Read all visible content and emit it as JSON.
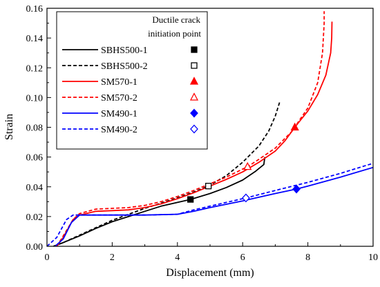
{
  "chart_data": {
    "type": "line",
    "xlabel": "Displacement (mm)",
    "ylabel": "Strain",
    "xlim": [
      0,
      10
    ],
    "ylim": [
      0,
      0.16
    ],
    "xticks": [
      "0",
      "2",
      "4",
      "6",
      "8",
      "10"
    ],
    "yticks": [
      "0.00",
      "0.02",
      "0.04",
      "0.06",
      "0.08",
      "0.10",
      "0.12",
      "0.14",
      "0.16"
    ],
    "grid": false,
    "legend": {
      "placement": "top-left",
      "title_line1": "Ductile crack",
      "title_line2": "initiation point"
    },
    "series": [
      {
        "name": "SBHS500-1",
        "color": "#000000",
        "dash": "solid",
        "marker": "square-filled",
        "crack_point": [
          4.4,
          0.0315
        ],
        "points": [
          [
            0.2,
            0
          ],
          [
            0.5,
            0.0025
          ],
          [
            1,
            0.007
          ],
          [
            1.5,
            0.012
          ],
          [
            2,
            0.0165
          ],
          [
            2.5,
            0.02
          ],
          [
            3,
            0.0235
          ],
          [
            3.5,
            0.027
          ],
          [
            4,
            0.0295
          ],
          [
            4.4,
            0.0315
          ],
          [
            5,
            0.0355
          ],
          [
            5.5,
            0.0395
          ],
          [
            6,
            0.0445
          ],
          [
            6.4,
            0.0505
          ],
          [
            6.65,
            0.055
          ],
          [
            6.68,
            0.06
          ]
        ]
      },
      {
        "name": "SBHS500-2",
        "color": "#000000",
        "dash": "dashed",
        "marker": "square-open",
        "crack_point": [
          4.95,
          0.0405
        ],
        "points": [
          [
            0.2,
            0
          ],
          [
            0.5,
            0.0025
          ],
          [
            1,
            0.0075
          ],
          [
            1.5,
            0.0125
          ],
          [
            2,
            0.0175
          ],
          [
            2.5,
            0.0215
          ],
          [
            3,
            0.0255
          ],
          [
            3.5,
            0.029
          ],
          [
            4,
            0.0325
          ],
          [
            4.5,
            0.0365
          ],
          [
            4.95,
            0.0405
          ],
          [
            5.5,
            0.0475
          ],
          [
            6,
            0.0565
          ],
          [
            6.5,
            0.0675
          ],
          [
            6.8,
            0.0775
          ],
          [
            7,
            0.0875
          ],
          [
            7.15,
            0.098
          ]
        ]
      },
      {
        "name": "SM570-1",
        "color": "#ff0000",
        "dash": "solid",
        "marker": "triangle-filled",
        "crack_point": [
          7.6,
          0.08
        ],
        "points": [
          [
            0.3,
            0
          ],
          [
            0.5,
            0.006
          ],
          [
            0.8,
            0.018
          ],
          [
            1,
            0.021
          ],
          [
            1.5,
            0.0235
          ],
          [
            2,
            0.024
          ],
          [
            2.5,
            0.0245
          ],
          [
            3,
            0.026
          ],
          [
            3.5,
            0.0285
          ],
          [
            4,
            0.032
          ],
          [
            4.5,
            0.036
          ],
          [
            5,
            0.0405
          ],
          [
            5.5,
            0.045
          ],
          [
            6,
            0.05
          ],
          [
            6.5,
            0.0565
          ],
          [
            7,
            0.064
          ],
          [
            7.3,
            0.071
          ],
          [
            7.6,
            0.08
          ],
          [
            8,
            0.091
          ],
          [
            8.3,
            0.102
          ],
          [
            8.55,
            0.115
          ],
          [
            8.7,
            0.13
          ],
          [
            8.73,
            0.14
          ],
          [
            8.74,
            0.151
          ]
        ]
      },
      {
        "name": "SM570-2",
        "color": "#ff0000",
        "dash": "dashed",
        "marker": "triangle-open",
        "crack_point": [
          6.15,
          0.0535
        ],
        "points": [
          [
            0.3,
            0
          ],
          [
            0.5,
            0.007
          ],
          [
            0.8,
            0.018
          ],
          [
            1,
            0.022
          ],
          [
            1.5,
            0.025
          ],
          [
            2,
            0.0255
          ],
          [
            2.5,
            0.026
          ],
          [
            3,
            0.0275
          ],
          [
            3.5,
            0.03
          ],
          [
            4,
            0.0335
          ],
          [
            4.5,
            0.0375
          ],
          [
            5,
            0.042
          ],
          [
            5.5,
            0.0465
          ],
          [
            6.15,
            0.0535
          ],
          [
            6.5,
            0.0585
          ],
          [
            7,
            0.066
          ],
          [
            7.5,
            0.077
          ],
          [
            8,
            0.093
          ],
          [
            8.3,
            0.11
          ],
          [
            8.45,
            0.13
          ],
          [
            8.5,
            0.15
          ],
          [
            8.5,
            0.158
          ]
        ]
      },
      {
        "name": "SM490-1",
        "color": "#0000ff",
        "dash": "solid",
        "marker": "diamond-filled",
        "crack_point": [
          7.65,
          0.0385
        ],
        "points": [
          [
            0.25,
            0
          ],
          [
            0.5,
            0.005
          ],
          [
            0.75,
            0.016
          ],
          [
            1,
            0.021
          ],
          [
            2,
            0.021
          ],
          [
            3,
            0.021
          ],
          [
            4,
            0.0215
          ],
          [
            4.5,
            0.0235
          ],
          [
            5,
            0.026
          ],
          [
            6,
            0.0305
          ],
          [
            7,
            0.0355
          ],
          [
            7.65,
            0.0385
          ],
          [
            8,
            0.0405
          ],
          [
            9,
            0.0465
          ],
          [
            10,
            0.053
          ]
        ]
      },
      {
        "name": "SM490-2",
        "color": "#0000ff",
        "dash": "dashed",
        "marker": "diamond-open",
        "crack_point": [
          6.1,
          0.0325
        ],
        "points": [
          [
            0,
            0
          ],
          [
            0.3,
            0.006
          ],
          [
            0.6,
            0.018
          ],
          [
            0.8,
            0.021
          ],
          [
            1,
            0.021
          ],
          [
            2,
            0.021
          ],
          [
            3,
            0.021
          ],
          [
            4,
            0.0215
          ],
          [
            4.5,
            0.0245
          ],
          [
            5,
            0.027
          ],
          [
            6.1,
            0.0325
          ],
          [
            7,
            0.0375
          ],
          [
            8,
            0.043
          ],
          [
            9,
            0.049
          ],
          [
            10,
            0.0558
          ]
        ]
      }
    ]
  }
}
